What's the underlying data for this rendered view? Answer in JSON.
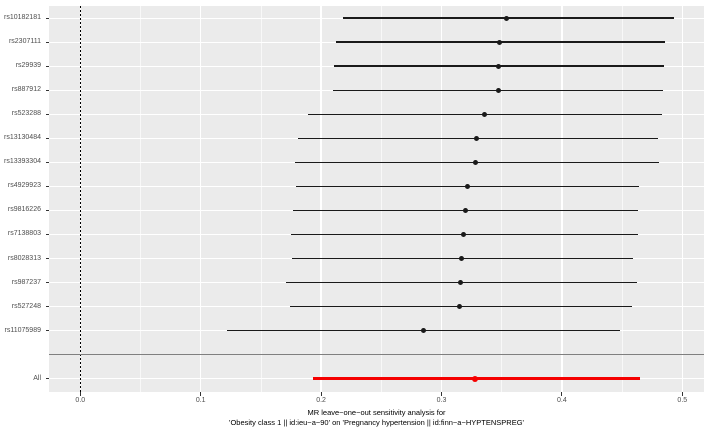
{
  "chart_data": {
    "type": "forest",
    "title_line1": "MR leave−one−out sensitivity analysis for",
    "title_line2": "'Obesity class 1 || id:ieu−a−90' on 'Pregnancy hypertension || id:finn−a−HYPTENSPREG'",
    "x_tick_labels": [
      "0.0",
      "0.1",
      "0.2",
      "0.3",
      "0.4",
      "0.5"
    ],
    "x_tick_values": [
      0,
      0.1,
      0.2,
      0.3,
      0.4,
      0.5
    ],
    "x_minor_values": [
      0.05,
      0.15,
      0.25,
      0.35,
      0.45
    ],
    "xlim": [
      -0.026,
      0.518
    ],
    "reference_line_x": 0,
    "legend": "none",
    "rows": [
      {
        "label": "rs10182181",
        "estimate": 0.354,
        "ci_low": 0.218,
        "ci_high": 0.493
      },
      {
        "label": "rs2307111",
        "estimate": 0.348,
        "ci_low": 0.212,
        "ci_high": 0.486
      },
      {
        "label": "rs29939",
        "estimate": 0.347,
        "ci_low": 0.211,
        "ci_high": 0.485
      },
      {
        "label": "rs887912",
        "estimate": 0.347,
        "ci_low": 0.21,
        "ci_high": 0.484
      },
      {
        "label": "rs523288",
        "estimate": 0.336,
        "ci_low": 0.189,
        "ci_high": 0.483
      },
      {
        "label": "rs13130484",
        "estimate": 0.329,
        "ci_low": 0.181,
        "ci_high": 0.48
      },
      {
        "label": "rs13393304",
        "estimate": 0.328,
        "ci_low": 0.178,
        "ci_high": 0.481
      },
      {
        "label": "rs4929923",
        "estimate": 0.322,
        "ci_low": 0.179,
        "ci_high": 0.464
      },
      {
        "label": "rs9816226",
        "estimate": 0.32,
        "ci_low": 0.177,
        "ci_high": 0.463
      },
      {
        "label": "rs7138803",
        "estimate": 0.318,
        "ci_low": 0.175,
        "ci_high": 0.463
      },
      {
        "label": "rs8028313",
        "estimate": 0.317,
        "ci_low": 0.176,
        "ci_high": 0.459
      },
      {
        "label": "rs987237",
        "estimate": 0.316,
        "ci_low": 0.171,
        "ci_high": 0.462
      },
      {
        "label": "rs527248",
        "estimate": 0.315,
        "ci_low": 0.174,
        "ci_high": 0.458
      },
      {
        "label": "rs11075989",
        "estimate": 0.285,
        "ci_low": 0.122,
        "ci_high": 0.448
      }
    ],
    "summary_row": {
      "label": "All",
      "estimate": 0.328,
      "ci_low": 0.193,
      "ci_high": 0.465
    },
    "colors": {
      "snp_line": "#1A1A1A",
      "snp_point": "#000000",
      "summary": "#F50000",
      "panel_bg": "#EBEBEB",
      "grid": "#FFFFFF",
      "separator": "#7F7F7F",
      "axis_text": "#4D4D4D",
      "tick": "#333333"
    }
  }
}
